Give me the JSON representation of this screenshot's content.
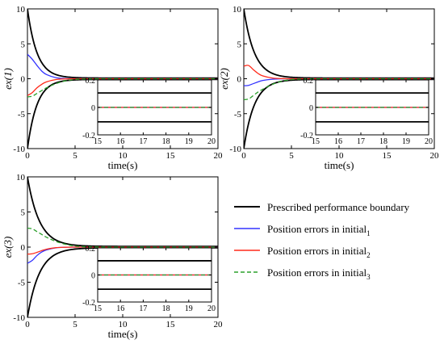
{
  "chart_data": [
    {
      "type": "line",
      "ylabel": "ex(1)",
      "xlabel": "time(s)",
      "xlim": [
        0,
        20
      ],
      "ylim": [
        -10,
        10
      ],
      "xticks": [
        "0",
        "5",
        "10",
        "15",
        "20"
      ],
      "yticks": [
        "-10",
        "-5",
        "0",
        "5",
        "10"
      ],
      "boundary": {
        "start": 10,
        "end": 0.1,
        "decay": 1.0
      },
      "series": [
        {
          "x": [
            0,
            0.5,
            1,
            1.5,
            2,
            3,
            4,
            5,
            6,
            8,
            10,
            15,
            20
          ],
          "y": [
            3.5,
            2.8,
            1.9,
            1.1,
            0.6,
            0.15,
            0.03,
            0,
            0,
            0,
            0,
            0,
            0
          ]
        },
        {
          "x": [
            0,
            0.5,
            1,
            1.5,
            2,
            3,
            4,
            5,
            6,
            8,
            10,
            15,
            20
          ],
          "y": [
            -2.4,
            -2.0,
            -1.3,
            -0.8,
            -0.45,
            -0.12,
            -0.02,
            0,
            0,
            0,
            0,
            0,
            0
          ]
        },
        {
          "x": [
            0,
            0.5,
            1,
            1.5,
            2,
            3,
            4,
            5,
            6,
            8,
            10,
            15,
            20
          ],
          "y": [
            -2.6,
            -2.5,
            -2.1,
            -1.7,
            -1.3,
            -0.7,
            -0.3,
            -0.1,
            -0.03,
            0,
            0,
            0,
            0
          ]
        }
      ],
      "inset": {
        "xlim": [
          15,
          20
        ],
        "ylim": [
          -0.2,
          0.2
        ],
        "xticks": [
          "15",
          "16",
          "17",
          "18",
          "19",
          "20"
        ],
        "yticks": [
          "-0.2",
          "0",
          "0.2"
        ],
        "boundary": [
          0.105,
          -0.105
        ]
      }
    },
    {
      "type": "line",
      "ylabel": "ex(2)",
      "xlabel": "time(s)",
      "xlim": [
        0,
        20
      ],
      "ylim": [
        -10,
        10
      ],
      "xticks": [
        "0",
        "5",
        "10",
        "15",
        "20"
      ],
      "yticks": [
        "-10",
        "-5",
        "0",
        "5",
        "10"
      ],
      "boundary": {
        "start": 10,
        "end": 0.1,
        "decay": 0.9
      },
      "series": [
        {
          "x": [
            0,
            0.5,
            1,
            1.5,
            2,
            3,
            4,
            5,
            6,
            8,
            10,
            15,
            20
          ],
          "y": [
            -1.0,
            -0.95,
            -0.7,
            -0.45,
            -0.25,
            -0.07,
            -0.01,
            0,
            0,
            0,
            0,
            0,
            0
          ]
        },
        {
          "x": [
            0,
            0.5,
            1,
            1.5,
            2,
            3,
            4,
            5,
            6,
            8,
            10,
            15,
            20
          ],
          "y": [
            1.8,
            1.9,
            1.3,
            0.75,
            0.4,
            0.1,
            0.02,
            0,
            0,
            0,
            0,
            0,
            0
          ]
        },
        {
          "x": [
            0,
            0.5,
            1,
            1.5,
            2,
            3,
            4,
            5,
            6,
            8,
            10,
            15,
            20
          ],
          "y": [
            -3.0,
            -2.9,
            -2.4,
            -1.9,
            -1.5,
            -0.8,
            -0.35,
            -0.12,
            -0.04,
            0,
            0,
            0,
            0
          ]
        }
      ],
      "inset": {
        "xlim": [
          15,
          20
        ],
        "ylim": [
          -0.2,
          0.2
        ],
        "xticks": [
          "15",
          "16",
          "17",
          "18",
          "19",
          "20"
        ],
        "yticks": [
          "-0.2",
          "0",
          "0.2"
        ],
        "boundary": [
          0.105,
          -0.105
        ]
      }
    },
    {
      "type": "line",
      "ylabel": "ex(3)",
      "xlabel": "time(s)",
      "xlim": [
        0,
        20
      ],
      "ylim": [
        -10,
        10
      ],
      "xticks": [
        "0",
        "5",
        "10",
        "15",
        "20"
      ],
      "yticks": [
        "-10",
        "-5",
        "0",
        "5",
        "10"
      ],
      "boundary": {
        "start": 10,
        "end": 0.1,
        "decay": 0.8
      },
      "series": [
        {
          "x": [
            0,
            0.5,
            1,
            1.5,
            2,
            3,
            4,
            5,
            6,
            8,
            10,
            15,
            20
          ],
          "y": [
            -2.3,
            -1.9,
            -1.2,
            -0.7,
            -0.4,
            -0.1,
            -0.02,
            0,
            0,
            0,
            0,
            0,
            0
          ]
        },
        {
          "x": [
            0,
            0.5,
            1,
            1.5,
            2,
            3,
            4,
            5,
            6,
            8,
            10,
            15,
            20
          ],
          "y": [
            -1.0,
            -0.95,
            -0.75,
            -0.5,
            -0.3,
            -0.08,
            -0.02,
            0,
            0,
            0,
            0,
            0,
            0
          ]
        },
        {
          "x": [
            0,
            0.5,
            1,
            1.5,
            2,
            3,
            4,
            5,
            6,
            8,
            10,
            15,
            20
          ],
          "y": [
            2.7,
            2.6,
            2.2,
            1.8,
            1.4,
            0.8,
            0.4,
            0.15,
            0.05,
            0.01,
            0,
            0,
            0
          ]
        }
      ],
      "inset": {
        "xlim": [
          15,
          20
        ],
        "ylim": [
          -0.2,
          0.2
        ],
        "xticks": [
          "15",
          "16",
          "17",
          "18",
          "19",
          "20"
        ],
        "yticks": [
          "-0.2",
          "0",
          "0.2"
        ],
        "boundary": [
          0.105,
          -0.105
        ]
      }
    }
  ],
  "legend": {
    "placement": "bottom-right",
    "entries": [
      {
        "label": "Prescribed performance boundary",
        "sub": "",
        "color": "#000000",
        "dash": false
      },
      {
        "label": "Position errors in initial",
        "sub": "1",
        "color": "#3333ff",
        "dash": false
      },
      {
        "label": "Position errors in initial",
        "sub": "2",
        "color": "#ff2a1a",
        "dash": false
      },
      {
        "label": "Position errors in initial",
        "sub": "3",
        "color": "#2ca02c",
        "dash": true
      }
    ]
  },
  "colors": {
    "boundary": "#000000",
    "series": [
      "#3333ff",
      "#ff2a1a",
      "#2ca02c"
    ]
  }
}
